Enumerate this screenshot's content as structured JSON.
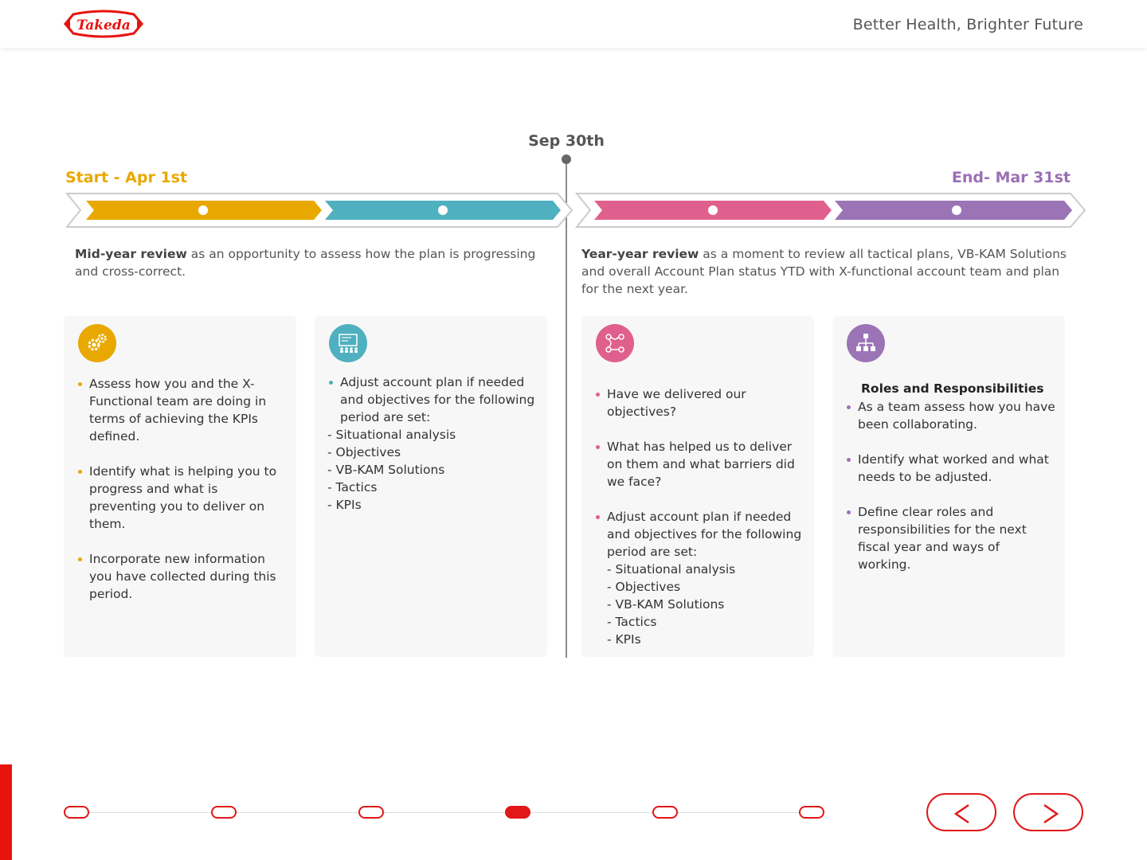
{
  "header": {
    "logo_text": "Takeda",
    "tagline": "Better Health, Brighter Future"
  },
  "timeline": {
    "start_label": "Start - Apr 1st",
    "mid_label": "Sep 30th",
    "end_label": "End- Mar 31st",
    "segments": [
      {
        "color": "#e8a800"
      },
      {
        "color": "#4fb0bf"
      },
      {
        "color": "#e0608d"
      },
      {
        "color": "#9b74b6"
      }
    ]
  },
  "reviews": {
    "left": {
      "bold": "Mid-year review",
      "text": " as an opportunity to assess how the plan is progressing and cross-correct."
    },
    "right": {
      "bold": "Year-year review",
      "text": " as a moment to review all tactical plans, VB-KAM Solutions and overall Account Plan status YTD with X-functional account team and plan for the next year."
    }
  },
  "cards": [
    {
      "icon": "gears-icon",
      "color": "#e8a800",
      "title": "",
      "bullets": [
        "Assess how you and the X-Functional team are doing in terms of achieving the KPIs defined.",
        "Identify what is helping you to progress and what is preventing you to deliver on them.",
        "Incorporate new information you have collected during this period."
      ]
    },
    {
      "icon": "planning-board-icon",
      "color": "#4fb0bf",
      "title": "",
      "bullets": [
        "Adjust account plan if needed and objectives for the following period are set:"
      ],
      "sublist": [
        "- Situational analysis",
        "- Objectives",
        "- VB-KAM Solutions",
        "- Tactics",
        "- KPIs"
      ]
    },
    {
      "icon": "strategy-path-icon",
      "color": "#e0608d",
      "title": "",
      "bullets": [
        "Have we delivered our objectives?",
        "What has helped us to deliver on them and what barriers did we face?",
        "Adjust account plan if needed and objectives for the following period are set:"
      ],
      "sublist": [
        "- Situational analysis",
        "- Objectives",
        "- VB-KAM Solutions",
        "- Tactics",
        "- KPIs"
      ]
    },
    {
      "icon": "org-chart-icon",
      "color": "#9b74b6",
      "title": "Roles and Responsibilities",
      "bullets": [
        "As a team assess how you have been collaborating.",
        "Identify what worked and what needs to be adjusted.",
        "Define clear roles and responsibilities for the next fiscal year and ways of working."
      ]
    }
  ],
  "pager": {
    "count": 6,
    "active": 4
  },
  "nav": {
    "prev": "previous",
    "next": "next"
  },
  "colors": {
    "accent": "#e01818",
    "takeda_red": "#e8130f"
  }
}
